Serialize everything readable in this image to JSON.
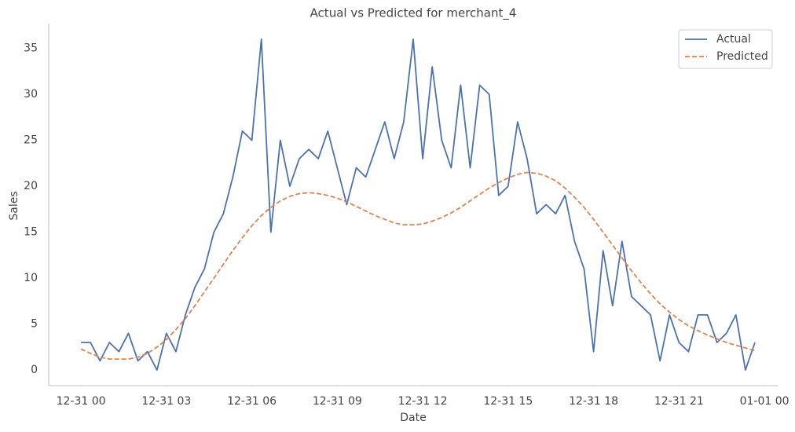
{
  "chart_data": {
    "type": "line",
    "title": "Actual vs Predicted for merchant_4",
    "x_label": "Date",
    "y_label": "Sales",
    "x": [
      0,
      20,
      40,
      60,
      80,
      100,
      120,
      140,
      160,
      180,
      200,
      220,
      240,
      260,
      280,
      300,
      320,
      340,
      360,
      380,
      400,
      420,
      440,
      460,
      480,
      500,
      520,
      540,
      560,
      580,
      600,
      620,
      640,
      660,
      680,
      700,
      720,
      740,
      760,
      780,
      800,
      820,
      840,
      860,
      880,
      900,
      920,
      940,
      960,
      980,
      1000,
      1020,
      1040,
      1060,
      1080,
      1100,
      1120,
      1140,
      1160,
      1180,
      1200,
      1220,
      1240,
      1260,
      1280,
      1300,
      1320,
      1340,
      1360,
      1380,
      1400,
      1420
    ],
    "series": [
      {
        "name": "Actual",
        "color": "#4c72b0",
        "dash": "solid",
        "values": [
          3,
          3,
          1,
          3,
          2,
          4,
          1,
          2,
          0,
          4,
          2,
          6,
          9,
          11,
          15,
          17,
          21,
          26,
          25,
          36,
          15,
          25,
          20,
          23,
          24,
          23,
          26,
          22,
          18,
          22,
          21,
          24,
          27,
          23,
          27,
          36,
          23,
          33,
          25,
          22,
          31,
          22,
          31,
          30,
          19,
          20,
          27,
          23,
          17,
          18,
          17,
          19,
          14,
          11,
          2,
          13,
          7,
          14,
          8,
          7,
          6,
          1,
          6,
          3,
          2,
          6,
          6,
          3,
          4,
          6,
          0,
          3
        ]
      },
      {
        "name": "Predicted",
        "color": "#dd8452",
        "dash": "dashed",
        "values": [
          2.3,
          1.8,
          1.4,
          1.2,
          1.2,
          1.2,
          1.4,
          1.8,
          2.5,
          3.3,
          4.4,
          5.6,
          7.0,
          8.5,
          10.0,
          11.5,
          13.0,
          14.4,
          15.7,
          16.8,
          17.7,
          18.4,
          18.9,
          19.2,
          19.3,
          19.2,
          19.0,
          18.7,
          18.3,
          17.8,
          17.3,
          16.8,
          16.4,
          16.0,
          15.8,
          15.8,
          15.9,
          16.2,
          16.6,
          17.1,
          17.7,
          18.4,
          19.1,
          19.8,
          20.4,
          20.9,
          21.3,
          21.5,
          21.4,
          21.1,
          20.6,
          19.8,
          18.8,
          17.7,
          16.4,
          15.0,
          13.6,
          12.2,
          10.8,
          9.5,
          8.3,
          7.2,
          6.3,
          5.5,
          4.8,
          4.3,
          3.8,
          3.4,
          3.0,
          2.7,
          2.4,
          2.1
        ]
      }
    ],
    "xlim": [
      -68,
      1468
    ],
    "ylim": [
      -1.7,
      37.7
    ],
    "xticks": [
      {
        "value": 0,
        "label": "12-31 00"
      },
      {
        "value": 180,
        "label": "12-31 03"
      },
      {
        "value": 360,
        "label": "12-31 06"
      },
      {
        "value": 540,
        "label": "12-31 09"
      },
      {
        "value": 720,
        "label": "12-31 12"
      },
      {
        "value": 900,
        "label": "12-31 15"
      },
      {
        "value": 1080,
        "label": "12-31 18"
      },
      {
        "value": 1260,
        "label": "12-31 21"
      },
      {
        "value": 1440,
        "label": "01-01 00"
      }
    ],
    "yticks": [
      0,
      5,
      10,
      15,
      20,
      25,
      30,
      35
    ],
    "grid": false,
    "legend": "upper right"
  }
}
